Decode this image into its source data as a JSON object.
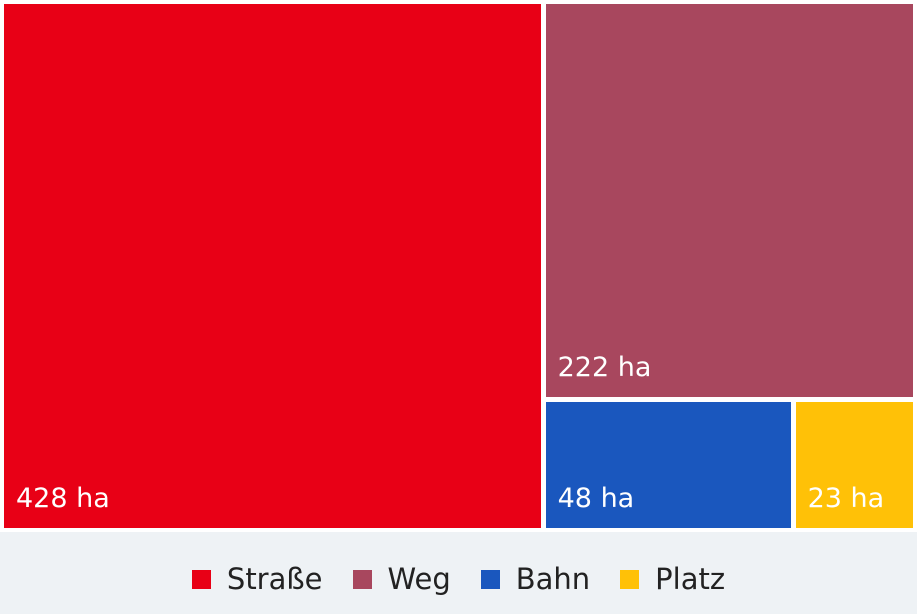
{
  "chart_data": {
    "type": "treemap",
    "unit": "ha",
    "items": [
      {
        "name": "Straße",
        "value": 428,
        "label": "428 ha",
        "color": "#e80016"
      },
      {
        "name": "Weg",
        "value": 222,
        "label": "222 ha",
        "color": "#a8475e"
      },
      {
        "name": "Bahn",
        "value": 48,
        "label": "48 ha",
        "color": "#1a57be"
      },
      {
        "name": "Platz",
        "value": 23,
        "label": "23 ha",
        "color": "#ffc107"
      }
    ],
    "legend": [
      "Straße",
      "Weg",
      "Bahn",
      "Platz"
    ],
    "legend_position": "bottom"
  }
}
